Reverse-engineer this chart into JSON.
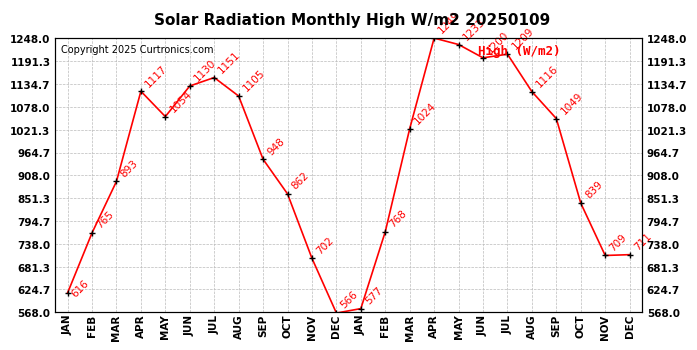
{
  "title": "Solar Radiation Monthly High W/m2 20250109",
  "copyright": "Copyright 2025 Curtronics.com",
  "legend_label": "High (W/m2)",
  "months": [
    "JAN",
    "FEB",
    "MAR",
    "APR",
    "MAY",
    "JUN",
    "JUL",
    "AUG",
    "SEP",
    "OCT",
    "NOV",
    "DEC",
    "JAN",
    "FEB",
    "MAR",
    "APR",
    "MAY",
    "JUN",
    "JUL",
    "AUG",
    "SEP",
    "OCT",
    "NOV",
    "DEC"
  ],
  "values": [
    616,
    765,
    893,
    1117,
    1054,
    1130,
    1151,
    1105,
    948,
    862,
    702,
    566,
    577,
    768,
    1024,
    1249,
    1233,
    1200,
    1209,
    1116,
    1049,
    839,
    709,
    711
  ],
  "ylim": [
    568.0,
    1248.0
  ],
  "yticks": [
    568.0,
    624.7,
    681.3,
    738.0,
    794.7,
    851.3,
    908.0,
    964.7,
    1021.3,
    1078.0,
    1134.7,
    1191.3,
    1248.0
  ],
  "line_color": "red",
  "marker_color": "black",
  "background_color": "#ffffff",
  "grid_color": "#bbbbbb",
  "title_fontsize": 11,
  "label_fontsize": 7.5,
  "tick_fontsize": 7.5,
  "copyright_fontsize": 7,
  "legend_fontsize": 9
}
